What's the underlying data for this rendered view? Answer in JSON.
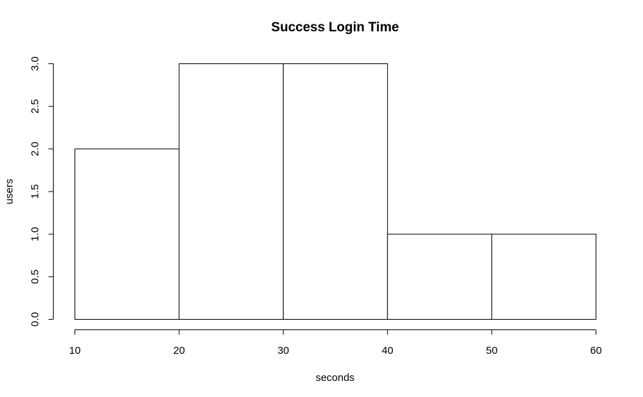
{
  "chart_data": {
    "type": "bar",
    "title": "Success Login Time",
    "xlabel": "seconds",
    "ylabel": "users",
    "bins": [
      {
        "from": 10,
        "to": 20,
        "value": 2
      },
      {
        "from": 20,
        "to": 30,
        "value": 3
      },
      {
        "from": 30,
        "to": 40,
        "value": 3
      },
      {
        "from": 40,
        "to": 50,
        "value": 1
      },
      {
        "from": 50,
        "to": 60,
        "value": 1
      }
    ],
    "xlim": [
      10,
      60
    ],
    "ylim": [
      0,
      3
    ],
    "xticks": [
      10,
      20,
      30,
      40,
      50,
      60
    ],
    "yticks": [
      0,
      0.5,
      1,
      1.5,
      2,
      2.5,
      3
    ],
    "xtick_labels": [
      "10",
      "20",
      "30",
      "40",
      "50",
      "60"
    ],
    "ytick_labels": [
      "0.0",
      "0.5",
      "1.0",
      "1.5",
      "2.0",
      "2.5",
      "3.0"
    ],
    "grid": false,
    "legend": false
  }
}
